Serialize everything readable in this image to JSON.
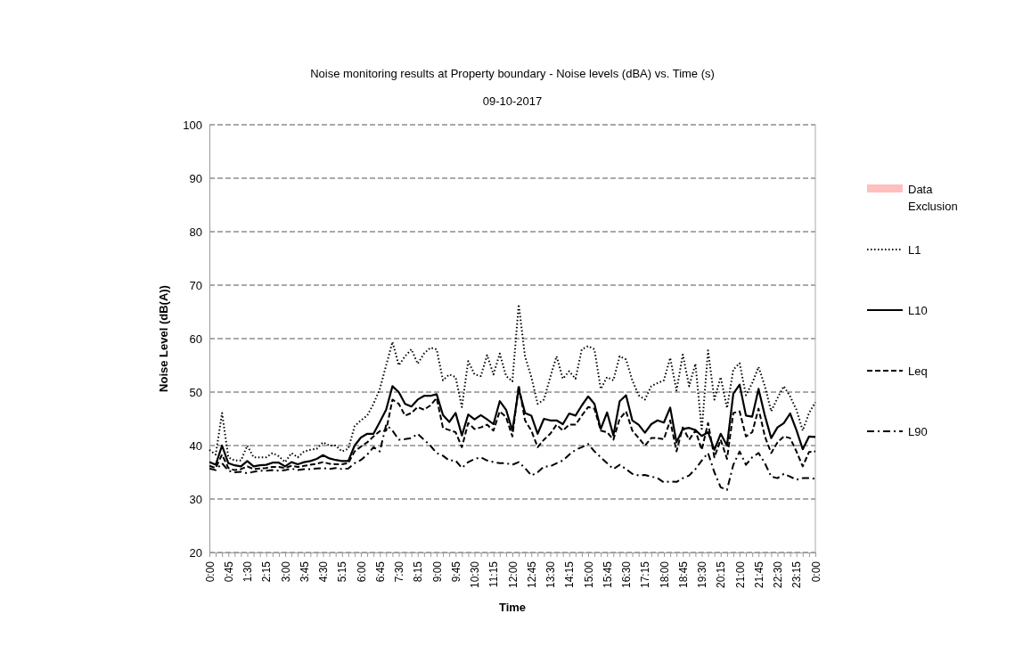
{
  "chart_data": {
    "type": "line",
    "title": "Noise monitoring results at Property boundary - Noise levels (dBA) vs. Time (s)",
    "subtitle": "09-10-2017",
    "xlabel": "Time",
    "ylabel": "Noise Level (dB(A))",
    "categories": [
      "0:00",
      null,
      null,
      "0:45",
      null,
      null,
      "1:30",
      null,
      null,
      "2:15",
      null,
      null,
      "3:00",
      null,
      null,
      "3:45",
      null,
      null,
      "4:30",
      null,
      null,
      "5:15",
      null,
      null,
      "6:00",
      null,
      null,
      "6:45",
      null,
      null,
      "7:30",
      null,
      null,
      "8:15",
      null,
      null,
      "9:00",
      null,
      null,
      "9:45",
      null,
      null,
      "10:30",
      null,
      null,
      "11:15",
      null,
      null,
      "12:00",
      null,
      null,
      "12:45",
      null,
      null,
      "13:30",
      null,
      null,
      "14:15",
      null,
      null,
      "15:00",
      null,
      null,
      "15:45",
      null,
      null,
      "16:30",
      null,
      null,
      "17:15",
      null,
      null,
      "18:00",
      null,
      null,
      "18:45",
      null,
      null,
      "19:30",
      null,
      null,
      "20:15",
      null,
      null,
      "21:00",
      null,
      null,
      "21:45",
      null,
      null,
      "22:30",
      null,
      null,
      "23:15",
      null,
      null,
      "0:00"
    ],
    "ylim": [
      20,
      100
    ],
    "yticks": [
      20,
      30,
      40,
      50,
      60,
      70,
      80,
      90,
      100
    ],
    "grid": "y",
    "legend": "right",
    "marker": "none",
    "series": [
      {
        "name": "Data Exclusion",
        "type": "bar",
        "color": "#ffbfbf",
        "values": [
          null,
          null,
          null,
          null,
          null,
          null,
          null,
          null,
          null,
          null,
          null,
          null,
          null,
          null,
          null,
          null,
          null,
          null,
          null,
          null,
          null,
          null,
          null,
          null,
          null,
          null,
          null,
          null,
          null,
          null,
          null,
          null,
          null,
          null,
          null,
          null,
          null,
          null,
          null,
          null,
          null,
          null,
          null,
          null,
          null,
          null,
          null,
          null,
          null,
          null,
          null,
          null,
          null,
          null,
          null,
          null,
          null,
          null,
          null,
          null,
          null,
          null,
          null,
          null,
          null,
          null,
          null,
          null,
          null,
          null,
          null,
          null,
          null,
          null,
          null,
          null,
          null,
          null,
          null,
          null,
          null,
          null,
          null,
          null,
          null,
          null,
          null,
          null,
          null,
          null,
          null,
          null,
          null,
          null,
          null,
          null,
          null
        ]
      },
      {
        "name": "L1",
        "color": "#000000",
        "line_style": "dotted",
        "values": [
          39.2,
          38.3,
          46.1,
          37.8,
          37.2,
          37.2,
          40,
          37.8,
          37.8,
          37.8,
          38.6,
          38,
          36.9,
          38.6,
          37.8,
          38.9,
          39.2,
          39.4,
          40.6,
          40,
          40,
          38.9,
          39.4,
          43.6,
          44.7,
          45.6,
          47.8,
          50.6,
          55,
          59.4,
          55,
          56.7,
          58,
          55.3,
          57.2,
          58.3,
          58,
          52.2,
          53.3,
          52.8,
          47.2,
          55.8,
          53.3,
          53,
          56.9,
          53.3,
          57.2,
          53,
          52,
          66.4,
          56.7,
          52.8,
          47.8,
          48.6,
          52.8,
          56.7,
          52.5,
          53.9,
          52.5,
          58,
          58.6,
          58,
          50.6,
          52.8,
          52.2,
          56.7,
          56.1,
          52.2,
          49.4,
          48.6,
          51.1,
          51.7,
          52.2,
          56.4,
          50.3,
          57,
          51.1,
          55.3,
          42.8,
          57.8,
          48.6,
          52.8,
          47,
          54.2,
          55.4,
          49.4,
          51.7,
          54.7,
          51.1,
          46.4,
          48.9,
          51.1,
          49.2,
          46.7,
          42.8,
          46.1,
          48.1
        ]
      },
      {
        "name": "L10",
        "color": "#000000",
        "line_style": "solid",
        "values": [
          36.9,
          36.4,
          40,
          36.7,
          36.3,
          36.1,
          37.1,
          36.1,
          36.3,
          36.4,
          36.8,
          36.8,
          36.1,
          36.9,
          36.5,
          36.9,
          37.1,
          37.5,
          38.2,
          37.6,
          37.3,
          37.1,
          37.1,
          40,
          41.5,
          42.2,
          42.2,
          44.4,
          46.7,
          51.1,
          50,
          47.8,
          47.3,
          48.6,
          49.3,
          49.3,
          49.6,
          45.7,
          44.4,
          46.1,
          41.9,
          45.8,
          44.9,
          45.7,
          44.9,
          44,
          48.3,
          46.7,
          42.8,
          50.6,
          46.1,
          45.6,
          42.2,
          45,
          44.7,
          44.7,
          44,
          46,
          45.6,
          47.5,
          49.2,
          47.8,
          43.1,
          46.2,
          41.9,
          48.3,
          49.4,
          44.7,
          43.9,
          42.4,
          44,
          44.7,
          44.3,
          47.1,
          40.6,
          43.1,
          43.3,
          42.9,
          41.8,
          42.5,
          39.2,
          42.2,
          40,
          49.7,
          51.4,
          45.6,
          45.4,
          50.6,
          45.6,
          41.4,
          43.4,
          44.2,
          46,
          42.9,
          39.3,
          41.7,
          41.6
        ]
      },
      {
        "name": "Leq",
        "color": "#000000",
        "line_style": "dashed",
        "values": [
          36.2,
          35.8,
          38.3,
          35.8,
          35.4,
          35.6,
          36.1,
          35.6,
          35.7,
          35.8,
          36,
          36,
          35.8,
          36.2,
          36,
          36.2,
          36.4,
          36.6,
          36.9,
          36.6,
          36.5,
          36.5,
          36.7,
          38.9,
          39.8,
          40.6,
          41.7,
          42.7,
          42.8,
          48.6,
          47.8,
          45.6,
          46.1,
          47.2,
          46.7,
          47.5,
          48.9,
          43.3,
          42.9,
          42.5,
          39.7,
          44.2,
          43.1,
          43.4,
          43.9,
          42.8,
          46.4,
          45.3,
          41.7,
          51.3,
          44.7,
          42.8,
          39.7,
          41.1,
          42.2,
          43.9,
          42.8,
          43.9,
          43.9,
          45.6,
          47.2,
          46.9,
          42.8,
          42.5,
          41.1,
          45,
          46.4,
          42.8,
          41.4,
          40,
          41.4,
          41.4,
          41.2,
          44.7,
          38.9,
          43.4,
          41.1,
          42.8,
          39.2,
          44.2,
          37.8,
          41.1,
          37.5,
          46.1,
          46.4,
          41.7,
          42.5,
          46.9,
          41.7,
          38.6,
          40.6,
          41.7,
          41.4,
          38.9,
          36.1,
          38.8,
          38.9
        ]
      },
      {
        "name": "L90",
        "color": "#000000",
        "line_style": "dashdot",
        "values": [
          35.7,
          35.4,
          36.7,
          35.3,
          35,
          35.1,
          34.8,
          35.1,
          35.3,
          35.3,
          35.4,
          35.3,
          35.4,
          35.7,
          35.4,
          35.6,
          35.6,
          35.7,
          35.8,
          35.6,
          35.8,
          35.6,
          35.7,
          36.7,
          37.3,
          38.3,
          39.7,
          38.9,
          43.9,
          42.8,
          41.1,
          41.2,
          41.4,
          42.2,
          41.1,
          40,
          38.6,
          38.1,
          37.2,
          37.2,
          35.8,
          36.9,
          37.5,
          37.8,
          37.2,
          36.9,
          36.7,
          36.7,
          36.4,
          36.9,
          35.8,
          34.4,
          35,
          36.1,
          36.1,
          36.7,
          37.2,
          38.3,
          39.2,
          39.7,
          40.3,
          38.9,
          37.8,
          36.7,
          35.6,
          36.4,
          35.6,
          34.7,
          34.4,
          34.5,
          34.2,
          33.9,
          33.1,
          33.3,
          33.2,
          33.9,
          34.4,
          35.6,
          37.2,
          38.6,
          35,
          32.2,
          31.7,
          36.4,
          38.9,
          36.4,
          37.8,
          38.6,
          36.7,
          34.2,
          33.9,
          34.7,
          34.2,
          33.6,
          33.9,
          33.9,
          33.8
        ]
      }
    ]
  }
}
